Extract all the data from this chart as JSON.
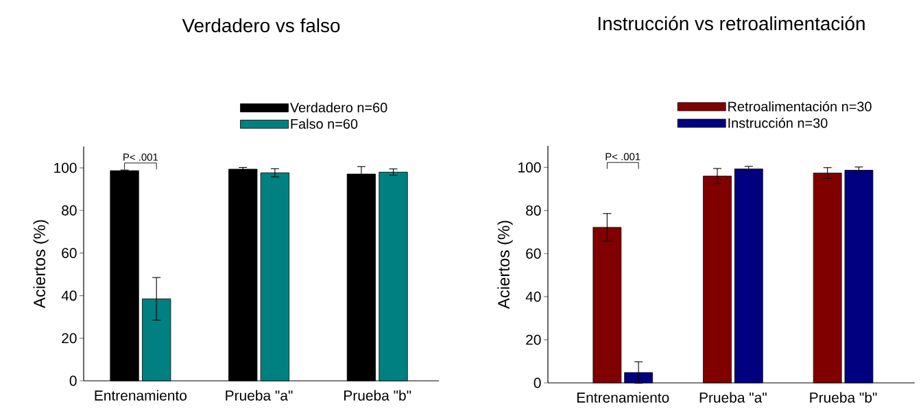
{
  "chart_data": [
    {
      "type": "bar",
      "title": "Verdadero vs falso",
      "ylabel": "Aciertos (%)",
      "categories": [
        "Entrenamiento",
        "Prueba \"a\"",
        "Prueba \"b\""
      ],
      "series": [
        {
          "name": "Verdadero n=60",
          "color": "#000000",
          "values": [
            98.7,
            99.4,
            97.1
          ],
          "errors": [
            0.3,
            0.8,
            3.5
          ]
        },
        {
          "name": "Falso n=60",
          "color": "#008080",
          "values": [
            38.5,
            97.7,
            98.0
          ],
          "errors": [
            10,
            1.9,
            1.5
          ]
        }
      ],
      "ylim": [
        0,
        110
      ],
      "yticks": [
        0,
        20,
        40,
        60,
        80,
        100
      ],
      "legend": "top right",
      "annotations": [
        "P< .001"
      ]
    },
    {
      "type": "bar",
      "title": "Instrucción vs retroalimentación",
      "ylabel": "Aciertos (%)",
      "categories": [
        "Entrenamiento",
        "Prueba \"a\"",
        "Prueba \"b\""
      ],
      "series": [
        {
          "name": "Retroalimentación n=30",
          "color": "#800000",
          "values": [
            72.2,
            96.0,
            97.4
          ],
          "errors": [
            6.4,
            3.5,
            2.5
          ]
        },
        {
          "name": "Instrucción n=30",
          "color": "#000080",
          "values": [
            4.8,
            99.3,
            98.7
          ],
          "errors": [
            5,
            1.2,
            1.5
          ]
        }
      ],
      "ylim": [
        0,
        110
      ],
      "yticks": [
        0,
        20,
        40,
        60,
        80,
        100
      ],
      "legend": "top right",
      "annotations": [
        "P< .001"
      ]
    }
  ]
}
